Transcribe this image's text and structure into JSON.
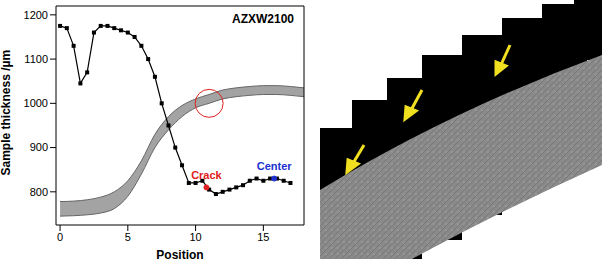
{
  "chart_data": {
    "type": "line",
    "title": "AZXW2100",
    "x_label": "Position",
    "y_label": "Sample thickness /µm",
    "xlim": [
      -0.3,
      18
    ],
    "xticks": [
      0,
      5,
      10,
      15
    ],
    "ylim": [
      725,
      1220
    ],
    "yticks": [
      800,
      900,
      1000,
      1100,
      1200
    ],
    "grid": false,
    "series": [
      {
        "type": "line",
        "color": "#000000",
        "marker": "square",
        "line_style": "solid",
        "x": [
          0,
          0.5,
          1,
          1.5,
          2,
          2.5,
          3,
          3.5,
          4,
          4.5,
          5,
          5.5,
          6,
          6.5,
          7,
          7.5,
          8,
          8.5,
          9,
          9.5,
          10,
          10.5,
          11,
          11.5,
          12,
          12.5,
          13,
          13.5,
          14,
          14.5,
          15,
          15.5,
          16,
          16.5,
          17
        ],
        "values": [
          1175,
          1170,
          1130,
          1045,
          1070,
          1160,
          1175,
          1175,
          1170,
          1165,
          1160,
          1150,
          1130,
          1100,
          1060,
          1000,
          950,
          900,
          860,
          820,
          820,
          825,
          805,
          795,
          800,
          805,
          810,
          815,
          825,
          830,
          825,
          830,
          830,
          825,
          820
        ]
      },
      {
        "type": "area",
        "color": "#8c8c8c",
        "x": [
          0,
          1,
          2,
          3,
          4,
          5,
          6,
          7,
          8,
          9,
          10,
          11,
          12,
          13,
          14,
          15,
          16,
          17,
          18
        ],
        "lower": [
          745,
          746,
          748,
          752,
          762,
          790,
          840,
          900,
          940,
          970,
          990,
          1000,
          1010,
          1015,
          1018,
          1020,
          1020,
          1018,
          1015
        ],
        "upper": [
          778,
          779,
          782,
          788,
          800,
          825,
          870,
          930,
          970,
          995,
          1010,
          1020,
          1030,
          1035,
          1038,
          1040,
          1040,
          1038,
          1035
        ]
      }
    ],
    "annotations": [
      {
        "text": "Crack",
        "x": 10.8,
        "y": 810,
        "color": "#e02020"
      },
      {
        "text": "Center",
        "x": 15.8,
        "y": 830,
        "color": "#2030d0"
      }
    ],
    "circle": {
      "x": 11,
      "y": 1000,
      "color": "#e02020"
    }
  }
}
